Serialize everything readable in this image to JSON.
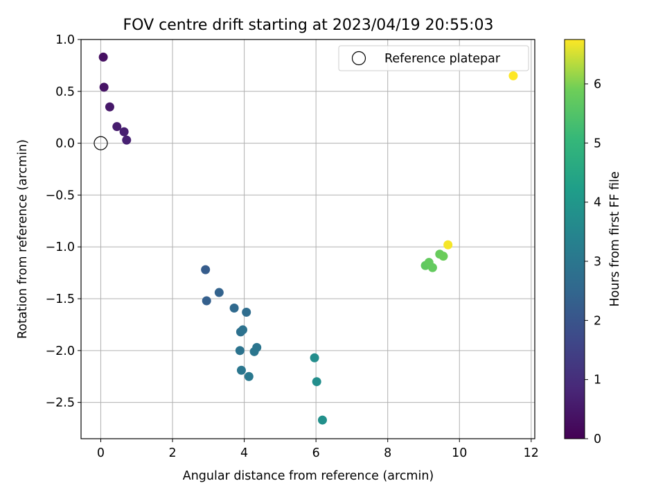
{
  "chart_data": {
    "type": "scatter",
    "title": "FOV centre drift starting at 2023/04/19 20:55:03",
    "xlabel": "Angular distance from reference (arcmin)",
    "ylabel": "Rotation from reference (arcmin)",
    "xlim": [
      -0.55,
      12.1
    ],
    "ylim": [
      -2.85,
      1.0
    ],
    "xticks": [
      0,
      2,
      4,
      6,
      8,
      10,
      12
    ],
    "xtick_labels": [
      "0",
      "2",
      "4",
      "6",
      "8",
      "10",
      "12"
    ],
    "yticks": [
      1.0,
      0.5,
      0.0,
      -0.5,
      -1.0,
      -1.5,
      -2.0,
      -2.5
    ],
    "ytick_labels": [
      "1.0",
      "0.5",
      "0.0",
      "−0.5",
      "−1.0",
      "−1.5",
      "−2.0",
      "−2.5"
    ],
    "grid": true,
    "colormap": "viridis",
    "colorbar": {
      "label": "Hours from first FF file",
      "range": [
        0,
        6.75
      ],
      "ticks": [
        0,
        1,
        2,
        3,
        4,
        5,
        6
      ],
      "tick_labels": [
        "0",
        "1",
        "2",
        "3",
        "4",
        "5",
        "6"
      ]
    },
    "legend": {
      "placement": "top-right",
      "entries": [
        {
          "label": "Reference platepar",
          "marker": "open-circle"
        }
      ]
    },
    "reference_point": {
      "x": 0.0,
      "y": 0.0
    },
    "points": [
      {
        "x": 0.07,
        "y": 0.83,
        "hours": 0.3
      },
      {
        "x": 0.09,
        "y": 0.54,
        "hours": 0.4
      },
      {
        "x": 0.25,
        "y": 0.35,
        "hours": 0.5
      },
      {
        "x": 0.45,
        "y": 0.16,
        "hours": 0.6
      },
      {
        "x": 0.65,
        "y": 0.11,
        "hours": 0.65
      },
      {
        "x": 0.72,
        "y": 0.03,
        "hours": 0.7
      },
      {
        "x": 2.92,
        "y": -1.22,
        "hours": 2.2
      },
      {
        "x": 2.95,
        "y": -1.52,
        "hours": 2.3
      },
      {
        "x": 3.3,
        "y": -1.44,
        "hours": 2.4
      },
      {
        "x": 3.72,
        "y": -1.59,
        "hours": 2.6
      },
      {
        "x": 4.06,
        "y": -1.63,
        "hours": 2.7
      },
      {
        "x": 3.9,
        "y": -1.82,
        "hours": 2.8
      },
      {
        "x": 3.96,
        "y": -1.8,
        "hours": 2.85
      },
      {
        "x": 3.88,
        "y": -2.0,
        "hours": 2.9
      },
      {
        "x": 4.35,
        "y": -1.97,
        "hours": 2.95
      },
      {
        "x": 4.28,
        "y": -2.01,
        "hours": 3.0
      },
      {
        "x": 3.92,
        "y": -2.19,
        "hours": 3.0
      },
      {
        "x": 4.13,
        "y": -2.25,
        "hours": 3.05
      },
      {
        "x": 5.96,
        "y": -2.07,
        "hours": 3.7
      },
      {
        "x": 6.02,
        "y": -2.3,
        "hours": 3.75
      },
      {
        "x": 6.18,
        "y": -2.67,
        "hours": 3.8
      },
      {
        "x": 9.05,
        "y": -1.18,
        "hours": 5.7
      },
      {
        "x": 9.15,
        "y": -1.15,
        "hours": 5.75
      },
      {
        "x": 9.25,
        "y": -1.2,
        "hours": 5.75
      },
      {
        "x": 9.45,
        "y": -1.07,
        "hours": 5.8
      },
      {
        "x": 9.55,
        "y": -1.09,
        "hours": 5.85
      },
      {
        "x": 9.68,
        "y": -0.98,
        "hours": 6.7
      },
      {
        "x": 11.5,
        "y": 0.65,
        "hours": 6.75
      }
    ]
  }
}
